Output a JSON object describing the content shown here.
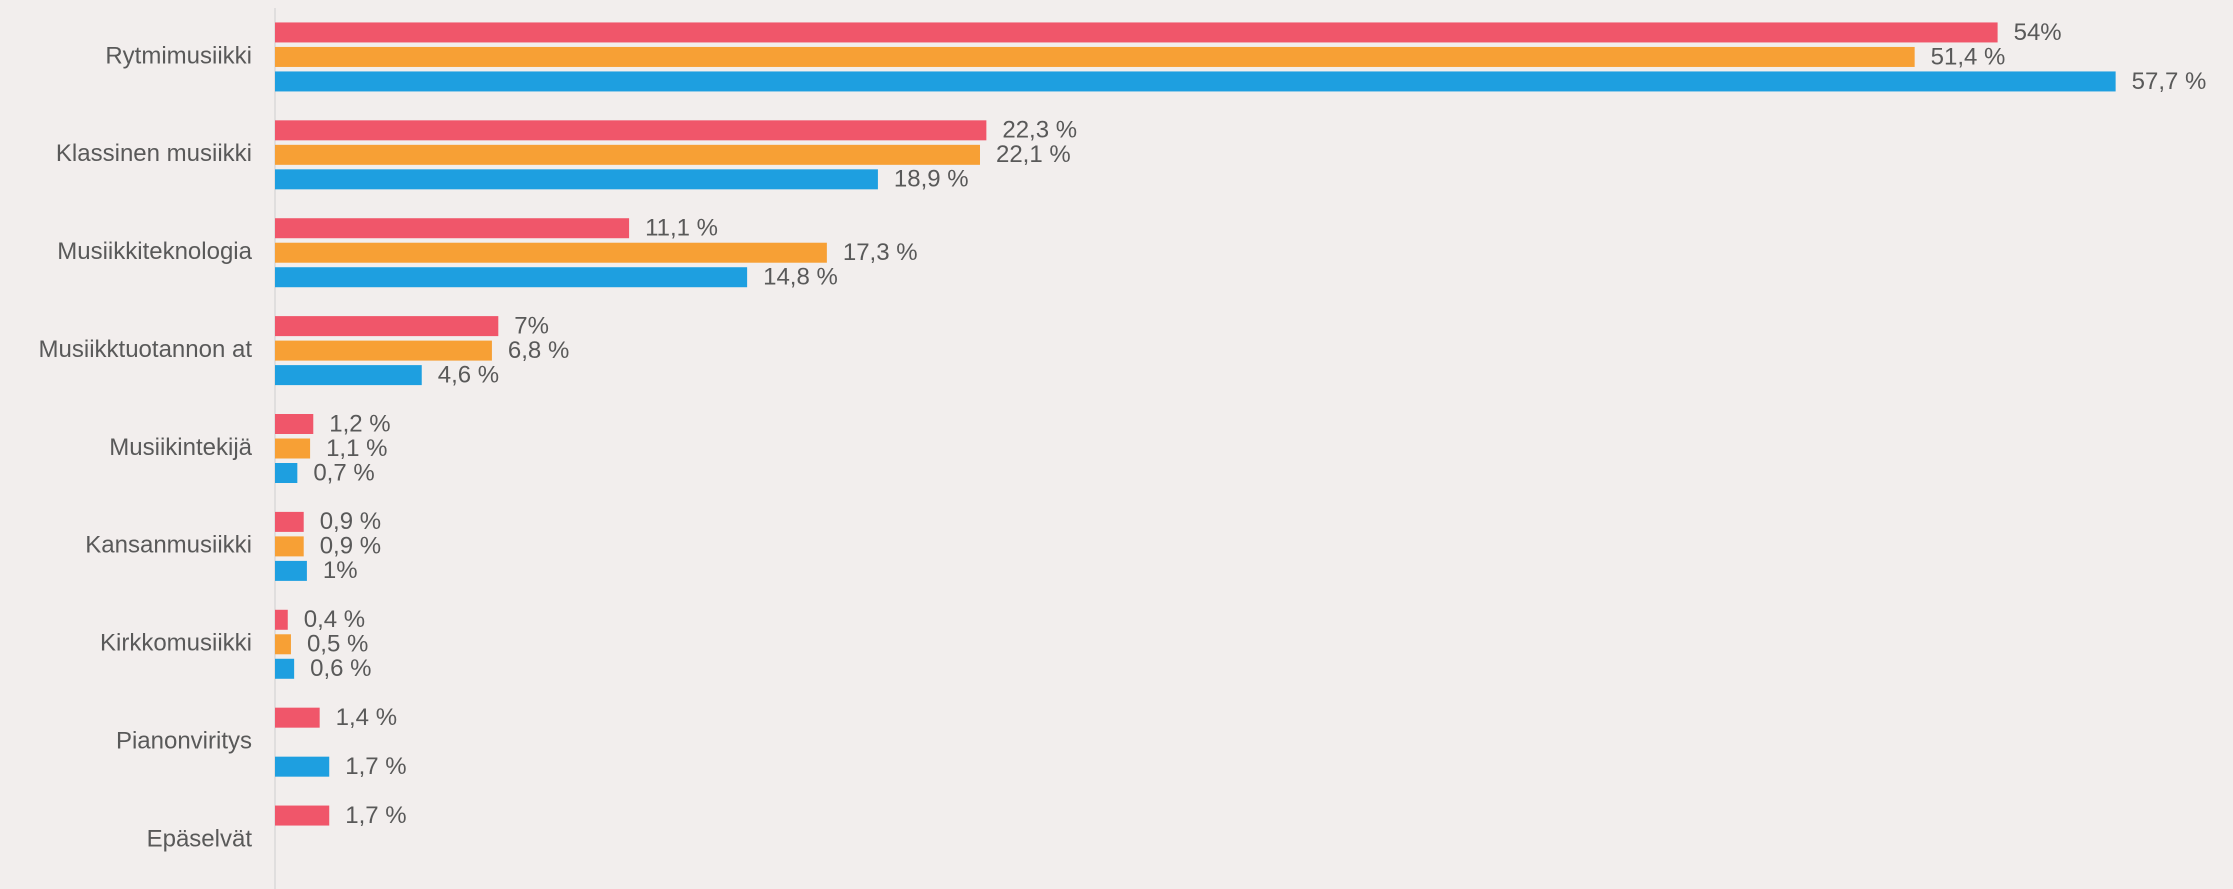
{
  "chart_data": {
    "type": "hbar",
    "categories": [
      "Rytmimusiikki",
      "Klassinen musiikki",
      "Musiikkiteknologia",
      "Musiikktuotannon at",
      "Musiikintekijä",
      "Kansanmusiikki",
      "Kirkkomusiikki",
      "Pianonviritys",
      "Epäselvät"
    ],
    "series": [
      {
        "color": "#f0566a",
        "values": [
          54,
          22.3,
          11.1,
          7,
          1.2,
          0.9,
          0.4,
          1.4,
          1.7
        ],
        "value_labels": [
          "54%",
          "22,3 %",
          "11,1 %",
          "7%",
          "1,2 %",
          "0,9 %",
          "0,4 %",
          "1,4 %",
          "1,7 %"
        ]
      },
      {
        "color": "#f7a035",
        "values": [
          51.4,
          22.1,
          17.3,
          6.8,
          1.1,
          0.9,
          0.5,
          null,
          null
        ],
        "value_labels": [
          "51,4 %",
          "22,1 %",
          "17,3 %",
          "6,8 %",
          "1,1 %",
          "0,9 %",
          "0,5 %",
          null,
          null
        ]
      },
      {
        "color": "#1e9fe0",
        "values": [
          57.7,
          18.9,
          14.8,
          4.6,
          0.7,
          1,
          0.6,
          1.7,
          null
        ],
        "value_labels": [
          "57,7 %",
          "18,9 %",
          "14,8 %",
          "4,6 %",
          "0,7 %",
          "1%",
          "0,6 %",
          "1,7 %",
          null
        ]
      }
    ],
    "xlim": [
      0,
      60
    ]
  }
}
